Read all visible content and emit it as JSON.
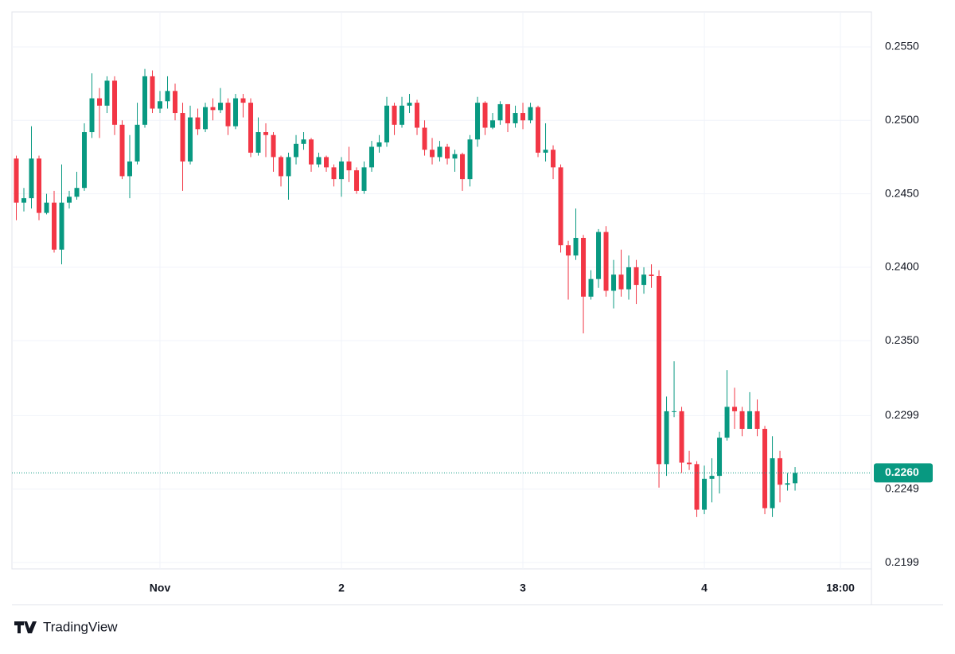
{
  "chart_data": {
    "type": "candlestick",
    "x": [
      -19,
      -18,
      -17,
      -16,
      -15,
      -14,
      -13,
      -12,
      -11,
      -10,
      -9,
      -8,
      -7,
      -6,
      -5,
      -4,
      -3,
      -2,
      -1,
      0,
      1,
      2,
      3,
      4,
      5,
      6,
      7,
      8,
      9,
      10,
      11,
      12,
      13,
      14,
      15,
      16,
      17,
      18,
      19,
      20,
      21,
      22,
      23,
      24,
      25,
      26,
      27,
      28,
      29,
      30,
      31,
      32,
      33,
      34,
      35,
      36,
      37,
      38,
      39,
      40,
      41,
      42,
      43,
      44,
      45,
      46,
      47,
      48,
      49,
      50,
      51,
      52,
      53,
      54,
      55,
      56,
      57,
      58,
      59,
      60,
      61,
      62,
      63,
      64,
      65,
      66,
      67,
      68,
      69,
      70,
      71,
      72,
      73,
      74,
      75,
      76,
      77,
      78,
      79,
      80,
      81,
      82,
      83,
      84
    ],
    "open": [
      0.2474,
      0.2444,
      0.2447,
      0.2474,
      0.2437,
      0.2444,
      0.2412,
      0.2444,
      0.2448,
      0.2454,
      0.2492,
      0.2515,
      0.251,
      0.2527,
      0.2497,
      0.2462,
      0.2472,
      0.2497,
      0.253,
      0.2508,
      0.2513,
      0.252,
      0.2505,
      0.2472,
      0.2502,
      0.2494,
      0.2509,
      0.2507,
      0.2512,
      0.2496,
      0.2515,
      0.2512,
      0.2478,
      0.2492,
      0.249,
      0.2475,
      0.2462,
      0.2475,
      0.2484,
      0.2487,
      0.247,
      0.2475,
      0.2468,
      0.246,
      0.2472,
      0.2466,
      0.2452,
      0.2468,
      0.2482,
      0.2485,
      0.251,
      0.2497,
      0.251,
      0.2512,
      0.2495,
      0.248,
      0.2475,
      0.2482,
      0.2474,
      0.2477,
      0.246,
      0.2487,
      0.2512,
      0.2495,
      0.25,
      0.2511,
      0.2498,
      0.2505,
      0.25,
      0.2509,
      0.2478,
      0.248,
      0.2468,
      0.2415,
      0.2408,
      0.242,
      0.238,
      0.2392,
      0.2424,
      0.2384,
      0.2395,
      0.2385,
      0.24,
      0.2388,
      0.2395,
      0.2394,
      0.2266,
      0.2302,
      0.2302,
      0.2267,
      0.2266,
      0.2235,
      0.2256,
      0.2258,
      0.2284,
      0.2305,
      0.2302,
      0.229,
      0.2302,
      0.229,
      0.2236,
      0.227,
      0.2252,
      0.2253
    ],
    "high": [
      0.2476,
      0.2454,
      0.2496,
      0.2476,
      0.245,
      0.2452,
      0.247,
      0.2452,
      0.2465,
      0.2498,
      0.2532,
      0.2522,
      0.253,
      0.253,
      0.25,
      0.249,
      0.2512,
      0.2535,
      0.2534,
      0.252,
      0.253,
      0.2525,
      0.2512,
      0.251,
      0.2508,
      0.2512,
      0.2515,
      0.2522,
      0.2515,
      0.2518,
      0.2518,
      0.2515,
      0.2502,
      0.2498,
      0.2492,
      0.2476,
      0.2478,
      0.249,
      0.2492,
      0.2488,
      0.2478,
      0.2476,
      0.247,
      0.2475,
      0.2482,
      0.2468,
      0.2472,
      0.2486,
      0.249,
      0.2516,
      0.2512,
      0.2516,
      0.2518,
      0.2514,
      0.25,
      0.2488,
      0.2486,
      0.2484,
      0.248,
      0.2478,
      0.249,
      0.2516,
      0.2513,
      0.2505,
      0.2513,
      0.2511,
      0.251,
      0.2512,
      0.2512,
      0.251,
      0.2498,
      0.2483,
      0.247,
      0.2418,
      0.244,
      0.2422,
      0.2398,
      0.2426,
      0.2428,
      0.2405,
      0.2412,
      0.2408,
      0.2405,
      0.24,
      0.2402,
      0.2398,
      0.2312,
      0.2336,
      0.2305,
      0.2275,
      0.2268,
      0.2265,
      0.227,
      0.2288,
      0.233,
      0.2318,
      0.2305,
      0.2315,
      0.231,
      0.2292,
      0.2285,
      0.2275,
      0.226,
      0.2264
    ],
    "low": [
      0.2432,
      0.2438,
      0.244,
      0.2432,
      0.2436,
      0.241,
      0.2402,
      0.244,
      0.2446,
      0.2452,
      0.2488,
      0.2488,
      0.2505,
      0.249,
      0.246,
      0.2447,
      0.247,
      0.2495,
      0.2505,
      0.2505,
      0.2508,
      0.25,
      0.2452,
      0.247,
      0.249,
      0.2492,
      0.25,
      0.2505,
      0.249,
      0.2494,
      0.2502,
      0.2475,
      0.2476,
      0.2475,
      0.2465,
      0.2455,
      0.2446,
      0.247,
      0.248,
      0.2465,
      0.2468,
      0.2465,
      0.2455,
      0.2448,
      0.2458,
      0.245,
      0.245,
      0.2465,
      0.2478,
      0.2482,
      0.249,
      0.2495,
      0.2505,
      0.249,
      0.2476,
      0.247,
      0.2472,
      0.247,
      0.2465,
      0.2452,
      0.2455,
      0.2482,
      0.249,
      0.2494,
      0.2497,
      0.2492,
      0.2495,
      0.2494,
      0.2498,
      0.2475,
      0.2472,
      0.246,
      0.241,
      0.2378,
      0.2405,
      0.2355,
      0.2378,
      0.2386,
      0.238,
      0.2372,
      0.238,
      0.2378,
      0.2375,
      0.2382,
      0.2386,
      0.225,
      0.2258,
      0.2298,
      0.226,
      0.2262,
      0.223,
      0.2232,
      0.224,
      0.2246,
      0.2282,
      0.229,
      0.2285,
      0.229,
      0.2285,
      0.2232,
      0.223,
      0.224,
      0.2248,
      0.2248
    ],
    "close": [
      0.2444,
      0.2447,
      0.2474,
      0.2437,
      0.2444,
      0.2412,
      0.2444,
      0.2448,
      0.2454,
      0.2492,
      0.2515,
      0.251,
      0.2527,
      0.2497,
      0.2462,
      0.2472,
      0.2497,
      0.253,
      0.2508,
      0.2513,
      0.252,
      0.2505,
      0.2472,
      0.2502,
      0.2494,
      0.2509,
      0.2507,
      0.2512,
      0.2496,
      0.2515,
      0.2512,
      0.2478,
      0.2492,
      0.249,
      0.2475,
      0.2462,
      0.2475,
      0.2484,
      0.2487,
      0.247,
      0.2475,
      0.2468,
      0.246,
      0.2472,
      0.2466,
      0.2452,
      0.2468,
      0.2482,
      0.2485,
      0.251,
      0.2497,
      0.251,
      0.2512,
      0.2495,
      0.248,
      0.2475,
      0.2482,
      0.2474,
      0.2477,
      0.246,
      0.2487,
      0.2512,
      0.2495,
      0.25,
      0.2511,
      0.2498,
      0.2505,
      0.25,
      0.2509,
      0.2478,
      0.248,
      0.2468,
      0.2415,
      0.2408,
      0.242,
      0.238,
      0.2392,
      0.2424,
      0.2384,
      0.2395,
      0.2385,
      0.24,
      0.2388,
      0.2395,
      0.2394,
      0.2266,
      0.2302,
      0.2302,
      0.2267,
      0.2266,
      0.2235,
      0.2256,
      0.2258,
      0.2284,
      0.2305,
      0.2302,
      0.229,
      0.2302,
      0.229,
      0.2236,
      0.227,
      0.2252,
      0.2253,
      0.226
    ],
    "up_color": "#089981",
    "down_color": "#f23645",
    "xlim": [
      -19.58,
      94.1
    ],
    "xticks": [
      {
        "value": 0,
        "label": "Nov"
      },
      {
        "value": 24,
        "label": "2"
      },
      {
        "value": 48,
        "label": "3"
      },
      {
        "value": 72,
        "label": "4"
      },
      {
        "value": 90,
        "label": "18:00"
      }
    ],
    "ylim": [
      0.21947,
      0.25738
    ],
    "yticks": [
      {
        "value": 0.255,
        "label": "0.2550"
      },
      {
        "value": 0.25,
        "label": "0.2500"
      },
      {
        "value": 0.245,
        "label": "0.2450"
      },
      {
        "value": 0.24,
        "label": "0.2400"
      },
      {
        "value": 0.235,
        "label": "0.2350"
      },
      0.2299,
      0.2249,
      0.2199
    ],
    "grid": true,
    "last_price": {
      "value": 0.226,
      "label": "0.2260"
    },
    "brand": "TradingView"
  }
}
